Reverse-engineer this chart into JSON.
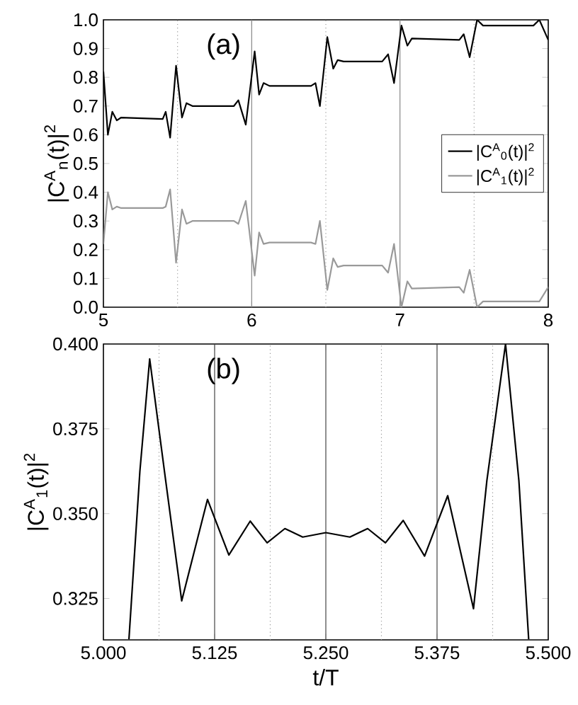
{
  "chart_data": [
    {
      "type": "line",
      "ylabel": "|C$^{A}$$_{n}$(t)|$^{2}$",
      "annotations": [
        "(a)"
      ],
      "legend": "right",
      "xlim": [
        5,
        8
      ],
      "xticks": [
        5,
        6,
        7,
        8
      ],
      "ylim": [
        0,
        1
      ],
      "yticks": [
        {
          "value": 0,
          "label": "0.0"
        },
        {
          "value": 0.1,
          "label": "0.1"
        },
        {
          "value": 0.2,
          "label": "0.2"
        },
        {
          "value": 0.3,
          "label": "0.3"
        },
        {
          "value": 0.4,
          "label": "0.4"
        },
        {
          "value": 0.5,
          "label": "0.5"
        },
        {
          "value": 0.6,
          "label": "0.6"
        },
        {
          "value": 0.7,
          "label": "0.7"
        },
        {
          "value": 0.8,
          "label": "0.8"
        },
        {
          "value": 0.9,
          "label": "0.9"
        },
        {
          "value": 1,
          "label": "1.0"
        }
      ],
      "ref_lines": [
        {
          "axis": "x",
          "value": 5.5,
          "color": "#999999",
          "line_style": "dotted"
        },
        {
          "axis": "x",
          "value": 6,
          "color": "#888888",
          "line_style": "solid"
        },
        {
          "axis": "x",
          "value": 6.5,
          "color": "#999999",
          "line_style": "dotted"
        },
        {
          "axis": "x",
          "value": 7,
          "color": "#888888",
          "line_style": "solid"
        },
        {
          "axis": "x",
          "value": 7.5,
          "color": "#999999",
          "line_style": "dotted"
        }
      ],
      "x": [
        5.0,
        5.03,
        5.06,
        5.09,
        5.12,
        5.4,
        5.42,
        5.45,
        5.49,
        5.53,
        5.56,
        5.6,
        5.88,
        5.91,
        5.96,
        6.02,
        6.05,
        6.08,
        6.12,
        6.4,
        6.43,
        6.46,
        6.51,
        6.55,
        6.58,
        6.62,
        6.88,
        6.92,
        6.96,
        7.01,
        7.05,
        7.08,
        7.4,
        7.43,
        7.47,
        7.52,
        7.56,
        7.9,
        7.94,
        8.0
      ],
      "series": [
        {
          "name": "|C$^{A}$$_{0}$(t)|$^{2}$",
          "color": "#000000",
          "values": [
            0.82,
            0.6,
            0.68,
            0.65,
            0.66,
            0.655,
            0.68,
            0.59,
            0.84,
            0.66,
            0.71,
            0.7,
            0.7,
            0.72,
            0.635,
            0.89,
            0.74,
            0.78,
            0.77,
            0.77,
            0.78,
            0.7,
            0.94,
            0.83,
            0.86,
            0.855,
            0.855,
            0.88,
            0.78,
            0.98,
            0.91,
            0.935,
            0.93,
            0.95,
            0.87,
            1.0,
            0.98,
            0.98,
            1.0,
            0.93
          ]
        },
        {
          "name": "|C$^{A}$$_{1}$(t)|$^{2}$",
          "color": "#999999",
          "values": [
            0.22,
            0.4,
            0.34,
            0.35,
            0.345,
            0.345,
            0.35,
            0.41,
            0.155,
            0.34,
            0.29,
            0.3,
            0.3,
            0.29,
            0.37,
            0.11,
            0.26,
            0.22,
            0.225,
            0.225,
            0.22,
            0.3,
            0.06,
            0.17,
            0.14,
            0.145,
            0.145,
            0.12,
            0.22,
            0.0,
            0.09,
            0.065,
            0.07,
            0.05,
            0.13,
            0.0,
            0.02,
            0.02,
            0.02,
            0.07
          ]
        }
      ]
    },
    {
      "type": "line",
      "xlabel": "t/T",
      "ylabel": "|C$^{A}$$_{1}$(t)|$^{2}$",
      "annotations": [
        "(b)"
      ],
      "xlim": [
        5,
        5.5
      ],
      "xticks": [
        {
          "value": 5,
          "label": "5.000"
        },
        {
          "value": 5.125,
          "label": "5.125"
        },
        {
          "value": 5.25,
          "label": "5.250"
        },
        {
          "value": 5.375,
          "label": "5.375"
        },
        {
          "value": 5.5,
          "label": "5.500"
        }
      ],
      "ylim": [
        0.3128,
        0.4
      ],
      "yticks": [
        {
          "value": 0.325,
          "label": "0.325"
        },
        {
          "value": 0.35,
          "label": "0.350"
        },
        {
          "value": 0.375,
          "label": "0.375"
        },
        {
          "value": 0.4,
          "label": "0.400"
        }
      ],
      "ref_lines": [
        {
          "axis": "x",
          "value": 5.0625,
          "color": "#999999",
          "line_style": "dotted"
        },
        {
          "axis": "x",
          "value": 5.125,
          "color": "#444444",
          "line_style": "solid"
        },
        {
          "axis": "x",
          "value": 5.1875,
          "color": "#999999",
          "line_style": "dotted"
        },
        {
          "axis": "x",
          "value": 5.25,
          "color": "#444444",
          "line_style": "solid"
        },
        {
          "axis": "x",
          "value": 5.3125,
          "color": "#999999",
          "line_style": "dotted"
        },
        {
          "axis": "x",
          "value": 5.375,
          "color": "#444444",
          "line_style": "solid"
        },
        {
          "axis": "x",
          "value": 5.4375,
          "color": "#999999",
          "line_style": "dotted"
        }
      ],
      "x": [
        5.0287,
        5.041,
        5.052,
        5.07,
        5.088,
        5.117,
        5.141,
        5.165,
        5.184,
        5.204,
        5.224,
        5.25,
        5.277,
        5.297,
        5.317,
        5.337,
        5.361,
        5.387,
        5.416,
        5.431,
        5.452,
        5.467,
        5.478
      ],
      "series": [
        {
          "color": "#000000",
          "values": [
            0.313,
            0.3625,
            0.3956,
            0.3597,
            0.3243,
            0.3542,
            0.3378,
            0.3478,
            0.3414,
            0.3456,
            0.3431,
            0.3444,
            0.3431,
            0.3456,
            0.3414,
            0.348,
            0.3375,
            0.3553,
            0.322,
            0.3597,
            0.4,
            0.3597,
            0.313
          ]
        }
      ]
    }
  ]
}
